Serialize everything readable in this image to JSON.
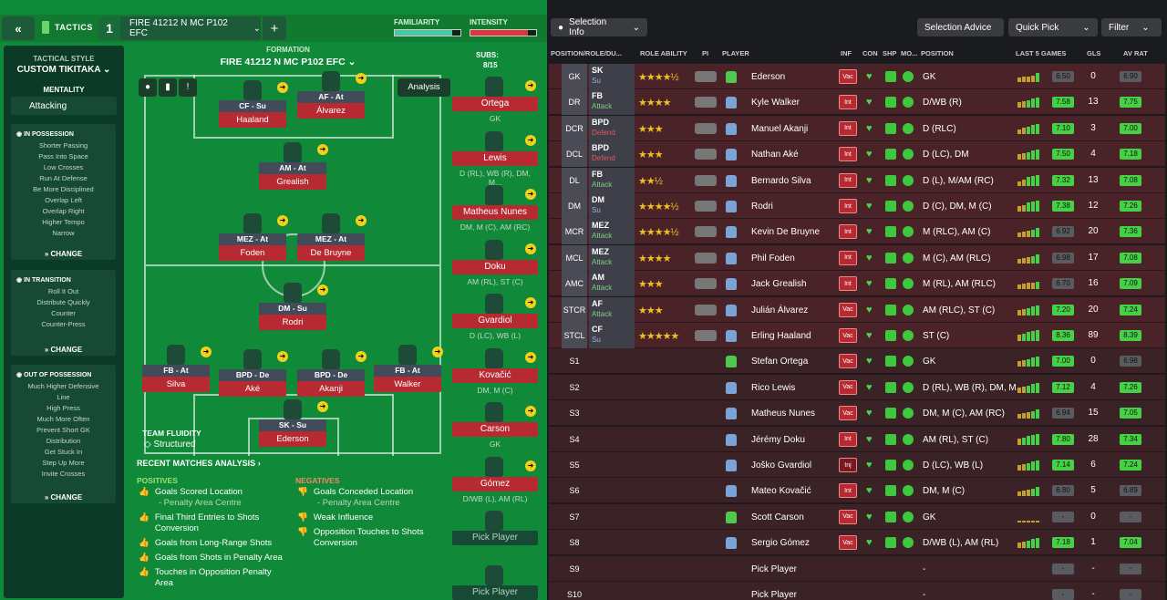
{
  "header": {
    "back_label": "«",
    "title": "TACTICS",
    "tactic_number": "1",
    "tactic_name": "FIRE 41212 N MC P102 EFC",
    "add_label": "+",
    "familiarity_label": "FAMILIARITY",
    "intensity_label": "INTENSITY"
  },
  "sidebar": {
    "style_heading": "TACTICAL STYLE",
    "style_value": "CUSTOM TIKITAKA",
    "mentality_heading": "MENTALITY",
    "mentality_value": "Attacking",
    "in_possession": {
      "title": "IN POSSESSION",
      "items": [
        "Shorter Passing",
        "Pass Into Space",
        "Low Crosses",
        "Run At Defense",
        "Be More Disciplined",
        "Overlap Left",
        "Overlap Right",
        "Higher Tempo",
        "Narrow"
      ],
      "change": "CHANGE"
    },
    "in_transition": {
      "title": "IN TRANSITION",
      "items": [
        "Roll It Out",
        "Distribute Quickly",
        "Counter",
        "Counter-Press"
      ],
      "change": "CHANGE"
    },
    "out_of_possession": {
      "title": "OUT OF POSSESSION",
      "items": [
        "Much Higher Defensive",
        "Line",
        "High Press",
        "Much More Often",
        "Prevent Short GK",
        "Distribution",
        "Get Stuck In",
        "Step Up More",
        "Invite Crosses"
      ],
      "change": "CHANGE"
    }
  },
  "pitch": {
    "formation_label": "FORMATION",
    "formation_name": "FIRE 41212 N MC P102 EFC",
    "analysis_label": "Analysis",
    "subs_label": "SUBS:",
    "subs_count": "8/15",
    "team_fluidity_label": "TEAM FLUIDITY",
    "team_fluidity_value": "Structured",
    "positions": [
      {
        "role": "CF - Su",
        "name": "Haaland"
      },
      {
        "role": "AF - At",
        "name": "Álvarez"
      },
      {
        "role": "AM - At",
        "name": "Grealish"
      },
      {
        "role": "MEZ - At",
        "name": "Foden"
      },
      {
        "role": "MEZ - At",
        "name": "De Bruyne"
      },
      {
        "role": "DM - Su",
        "name": "Rodri"
      },
      {
        "role": "FB - At",
        "name": "Silva"
      },
      {
        "role": "BPD - De",
        "name": "Aké"
      },
      {
        "role": "BPD - De",
        "name": "Akanji"
      },
      {
        "role": "FB - At",
        "name": "Walker"
      },
      {
        "role": "SK - Su",
        "name": "Ederson"
      }
    ],
    "subs": [
      {
        "name": "Ortega",
        "pos": "GK"
      },
      {
        "name": "Lewis",
        "pos": "D (RL), WB (R), DM, M..."
      },
      {
        "name": "Matheus Nunes",
        "pos": "DM, M (C), AM (RC)"
      },
      {
        "name": "Doku",
        "pos": "AM (RL), ST (C)"
      },
      {
        "name": "Gvardiol",
        "pos": "D (LC), WB (L)"
      },
      {
        "name": "Kovačić",
        "pos": "DM, M (C)"
      },
      {
        "name": "Carson",
        "pos": "GK"
      },
      {
        "name": "Gómez",
        "pos": "D/WB (L), AM (RL)"
      },
      {
        "name": "Pick Player",
        "pos": ""
      },
      {
        "name": "Pick Player",
        "pos": ""
      }
    ]
  },
  "analysis": {
    "title": "RECENT MATCHES ANALYSIS",
    "positives_label": "POSITIVES",
    "positives": [
      {
        "text": "Goals Scored Location",
        "sub": "- Penalty Area Centre"
      },
      {
        "text": "Final Third Entries to Shots Conversion",
        "sub": ""
      },
      {
        "text": "Goals from Long-Range Shots",
        "sub": ""
      },
      {
        "text": "Goals from Shots in Penalty Area",
        "sub": ""
      },
      {
        "text": "Touches in Opposition Penalty Area",
        "sub": ""
      }
    ],
    "negatives_label": "NEGATIVES",
    "negatives": [
      {
        "text": "Goals Conceded Location",
        "sub": "- Penalty Area Centre"
      },
      {
        "text": "Weak Influence",
        "sub": ""
      },
      {
        "text": "Opposition Touches to Shots Conversion",
        "sub": ""
      }
    ]
  },
  "right_toolbar": {
    "selection_info": "Selection Info",
    "selection_advice": "Selection Advice",
    "quick_pick": "Quick Pick",
    "filter": "Filter"
  },
  "columns": [
    "POSITION/ROLE/DU...",
    "ROLE ABILITY",
    "PI",
    "PLAYER",
    "INF",
    "CON",
    "SHP",
    "MO...",
    "POSITION",
    "LAST 5 GAMES",
    "GLS",
    "AV RAT"
  ],
  "players": [
    {
      "pos": "GK",
      "role": "SK",
      "duty": "Su",
      "stars": "★★★★½",
      "name": "Ederson",
      "inf": "Vac",
      "npos": "GK",
      "form": [
        0.4,
        0.5,
        0.5,
        0.6,
        0.8
      ],
      "rating": "6.50",
      "gls": "0",
      "av": "6.90"
    },
    {
      "pos": "DR",
      "role": "FB",
      "duty": "Attack",
      "stars": "★★★★",
      "name": "Kyle Walker",
      "inf": "Int",
      "npos": "D/WB (R)",
      "form": [
        0.5,
        0.6,
        0.7,
        0.8,
        0.9
      ],
      "rating": "7.58",
      "gls": "13",
      "av": "7.75"
    },
    {
      "pos": "DCR",
      "role": "BPD",
      "duty": "Defend",
      "stars": "★★★",
      "name": "Manuel Akanji",
      "inf": "Int",
      "npos": "D (RLC)",
      "form": [
        0.4,
        0.6,
        0.7,
        0.8,
        0.9
      ],
      "rating": "7.10",
      "gls": "3",
      "av": "7.00"
    },
    {
      "pos": "DCL",
      "role": "BPD",
      "duty": "Defend",
      "stars": "★★★",
      "name": "Nathan Aké",
      "inf": "Int",
      "npos": "D (LC), DM",
      "form": [
        0.5,
        0.6,
        0.7,
        0.8,
        0.9
      ],
      "rating": "7.50",
      "gls": "4",
      "av": "7.18"
    },
    {
      "pos": "DL",
      "role": "FB",
      "duty": "Attack",
      "stars": "★★½",
      "name": "Bernardo Silva",
      "inf": "Int",
      "npos": "D (L), M/AM (RC)",
      "form": [
        0.4,
        0.6,
        0.8,
        0.9,
        1.0
      ],
      "rating": "7.32",
      "gls": "13",
      "av": "7.08"
    },
    {
      "pos": "DM",
      "role": "DM",
      "duty": "Su",
      "stars": "★★★★½",
      "name": "Rodri",
      "inf": "Int",
      "npos": "D (C), DM, M (C)",
      "form": [
        0.5,
        0.6,
        0.8,
        0.9,
        1.0
      ],
      "rating": "7.38",
      "gls": "12",
      "av": "7.26"
    },
    {
      "pos": "MCR",
      "role": "MEZ",
      "duty": "Attack",
      "stars": "★★★★½",
      "name": "Kevin De Bruyne",
      "inf": "Int",
      "npos": "M (RLC), AM (C)",
      "form": [
        0.4,
        0.5,
        0.6,
        0.7,
        0.8
      ],
      "rating": "6.92",
      "gls": "20",
      "av": "7.36"
    },
    {
      "pos": "MCL",
      "role": "MEZ",
      "duty": "Attack",
      "stars": "★★★★",
      "name": "Phil Foden",
      "inf": "Int",
      "npos": "M (C), AM (RLC)",
      "form": [
        0.4,
        0.5,
        0.6,
        0.7,
        0.8
      ],
      "rating": "6.98",
      "gls": "17",
      "av": "7.08"
    },
    {
      "pos": "AMC",
      "role": "AM",
      "duty": "Attack",
      "stars": "★★★",
      "name": "Jack Grealish",
      "inf": "Int",
      "npos": "M (RL), AM (RLC)",
      "form": [
        0.4,
        0.5,
        0.6,
        0.6,
        0.7
      ],
      "rating": "6.70",
      "gls": "16",
      "av": "7.09"
    },
    {
      "pos": "STCR",
      "role": "AF",
      "duty": "Attack",
      "stars": "★★★",
      "name": "Julián Álvarez",
      "inf": "Vac",
      "npos": "AM (RLC), ST (C)",
      "form": [
        0.5,
        0.6,
        0.7,
        0.8,
        0.9
      ],
      "rating": "7.20",
      "gls": "20",
      "av": "7.24"
    },
    {
      "pos": "STCL",
      "role": "CF",
      "duty": "Su",
      "stars": "★★★★★",
      "name": "Erling Haaland",
      "inf": "Vac",
      "npos": "ST (C)",
      "form": [
        0.6,
        0.7,
        0.8,
        0.9,
        1.0
      ],
      "rating": "8.36",
      "gls": "89",
      "av": "8.39"
    },
    {
      "pos": "S1",
      "role": "",
      "duty": "",
      "stars": "",
      "name": "Stefan Ortega",
      "inf": "Vac",
      "npos": "GK",
      "form": [
        0.5,
        0.6,
        0.7,
        0.8,
        0.9
      ],
      "rating": "7.00",
      "gls": "0",
      "av": "6.98"
    },
    {
      "pos": "S2",
      "role": "",
      "duty": "",
      "stars": "",
      "name": "Rico Lewis",
      "inf": "Vac",
      "npos": "D (RL), WB (R), DM, M...",
      "form": [
        0.5,
        0.6,
        0.7,
        0.8,
        0.9
      ],
      "rating": "7.12",
      "gls": "4",
      "av": "7.26"
    },
    {
      "pos": "S3",
      "role": "",
      "duty": "",
      "stars": "",
      "name": "Matheus Nunes",
      "inf": "Vac",
      "npos": "DM, M (C), AM (RC)",
      "form": [
        0.4,
        0.5,
        0.6,
        0.7,
        0.8
      ],
      "rating": "6.94",
      "gls": "15",
      "av": "7.05"
    },
    {
      "pos": "S4",
      "role": "",
      "duty": "",
      "stars": "",
      "name": "Jérémy Doku",
      "inf": "Int",
      "npos": "AM (RL), ST (C)",
      "form": [
        0.6,
        0.7,
        0.8,
        0.9,
        1.0
      ],
      "rating": "7.80",
      "gls": "28",
      "av": "7.34"
    },
    {
      "pos": "S5",
      "role": "",
      "duty": "",
      "stars": "",
      "name": "Joško Gvardiol",
      "inf": "Inj",
      "npos": "D (LC), WB (L)",
      "form": [
        0.5,
        0.6,
        0.7,
        0.8,
        0.9
      ],
      "rating": "7.14",
      "gls": "6",
      "av": "7.24"
    },
    {
      "pos": "S6",
      "role": "",
      "duty": "",
      "stars": "",
      "name": "Mateo Kovačić",
      "inf": "Int",
      "npos": "DM, M (C)",
      "form": [
        0.4,
        0.5,
        0.6,
        0.7,
        0.8
      ],
      "rating": "6.80",
      "gls": "5",
      "av": "6.89"
    },
    {
      "pos": "S7",
      "role": "",
      "duty": "",
      "stars": "",
      "name": "Scott Carson",
      "inf": "Vac",
      "npos": "GK",
      "form": [
        0.2,
        0.2,
        0.2,
        0.2,
        0.2
      ],
      "rating": "-",
      "gls": "0",
      "av": "-"
    },
    {
      "pos": "S8",
      "role": "",
      "duty": "",
      "stars": "",
      "name": "Sergio Gómez",
      "inf": "Vac",
      "npos": "D/WB (L), AM (RL)",
      "form": [
        0.5,
        0.6,
        0.7,
        0.8,
        0.9
      ],
      "rating": "7.18",
      "gls": "1",
      "av": "7.04"
    },
    {
      "pos": "S9",
      "role": "",
      "duty": "",
      "stars": "",
      "name": "Pick Player",
      "inf": "",
      "npos": "-",
      "form": [],
      "rating": "-",
      "gls": "-",
      "av": "-"
    },
    {
      "pos": "S10",
      "role": "",
      "duty": "",
      "stars": "",
      "name": "Pick Player",
      "inf": "",
      "npos": "-",
      "form": [],
      "rating": "-",
      "gls": "-",
      "av": "-"
    }
  ]
}
